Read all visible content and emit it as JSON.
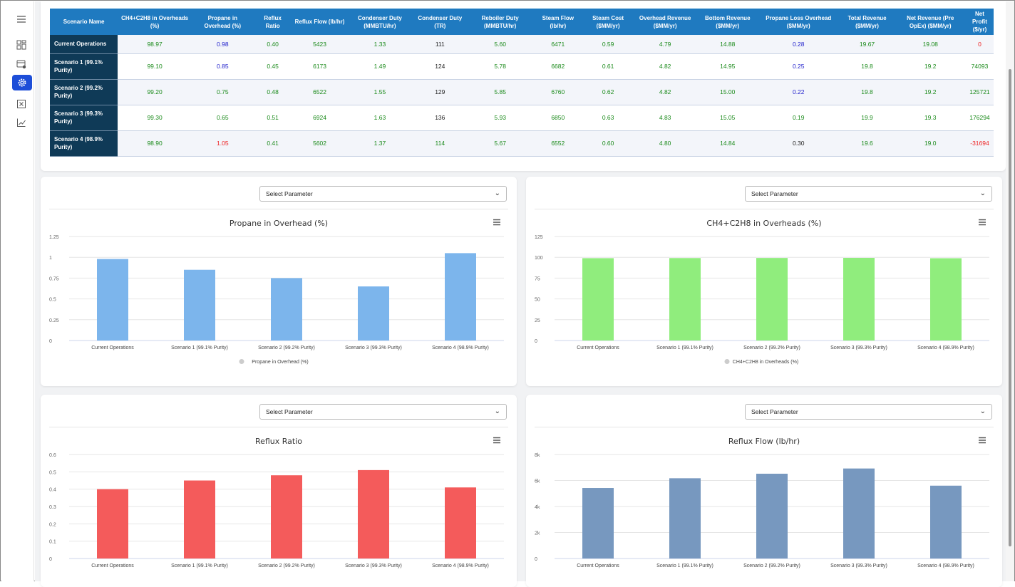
{
  "sidebar": {
    "icons": [
      "menu-icon",
      "dashboard-icon",
      "storage-settings-icon",
      "gear-icon",
      "close-box-icon",
      "trend-chart-icon"
    ],
    "active_index": 3
  },
  "table": {
    "headers": [
      "Scenario Name",
      "CH4+C2H8 in Overheads (%)",
      "Propane in Overhead (%)",
      "Reflux Ratio",
      "Reflux Flow (lb/hr)",
      "Condenser Duty (MMBTU/hr)",
      "Condenser Duty (TR)",
      "Reboiler Duty (MMBTU/hr)",
      "Steam Flow (lb/hr)",
      "Steam Cost ($MM/yr)",
      "Overhead Revenue ($MM/yr)",
      "Bottom Revenue ($MM/yr)",
      "Propane Loss Overhead ($MM/yr)",
      "Total Revenue ($MM/yr)",
      "Net Revenue (Pre OpEx) ($MM/yr)",
      "Net Profit ($/yr)"
    ],
    "rows": [
      {
        "name": "Current Operations",
        "cells": [
          "98.97",
          "0.98",
          "0.40",
          "5423",
          "1.33",
          "111",
          "5.60",
          "6471",
          "0.59",
          "4.79",
          "14.88",
          "0.28",
          "19.67",
          "19.08",
          "0"
        ],
        "colors": [
          "green",
          "blue",
          "green",
          "green",
          "green",
          "black",
          "green",
          "green",
          "green",
          "green",
          "green",
          "blue",
          "green",
          "green",
          "red"
        ]
      },
      {
        "name": "Scenario 1 (99.1% Purity)",
        "cells": [
          "99.10",
          "0.85",
          "0.45",
          "6173",
          "1.49",
          "124",
          "5.78",
          "6682",
          "0.61",
          "4.82",
          "14.95",
          "0.25",
          "19.8",
          "19.2",
          "74093"
        ],
        "colors": [
          "green",
          "blue",
          "green",
          "green",
          "green",
          "black",
          "green",
          "green",
          "green",
          "green",
          "green",
          "blue",
          "green",
          "green",
          "green"
        ]
      },
      {
        "name": "Scenario 2 (99.2% Purity)",
        "cells": [
          "99.20",
          "0.75",
          "0.48",
          "6522",
          "1.55",
          "129",
          "5.85",
          "6760",
          "0.62",
          "4.82",
          "15.00",
          "0.22",
          "19.8",
          "19.2",
          "125721"
        ],
        "colors": [
          "green",
          "green",
          "green",
          "green",
          "green",
          "black",
          "green",
          "green",
          "green",
          "green",
          "green",
          "blue",
          "green",
          "green",
          "green"
        ]
      },
      {
        "name": "Scenario 3 (99.3% Purity)",
        "cells": [
          "99.30",
          "0.65",
          "0.51",
          "6924",
          "1.63",
          "136",
          "5.93",
          "6850",
          "0.63",
          "4.83",
          "15.05",
          "0.19",
          "19.9",
          "19.3",
          "176294"
        ],
        "colors": [
          "green",
          "green",
          "green",
          "green",
          "green",
          "black",
          "green",
          "green",
          "green",
          "green",
          "green",
          "green",
          "green",
          "green",
          "green"
        ]
      },
      {
        "name": "Scenario 4 (98.9% Purity)",
        "cells": [
          "98.90",
          "1.05",
          "0.41",
          "5602",
          "1.37",
          "114",
          "5.67",
          "6552",
          "0.60",
          "4.80",
          "14.84",
          "0.30",
          "19.6",
          "19.0",
          "-31694"
        ],
        "colors": [
          "green",
          "red",
          "green",
          "green",
          "green",
          "green",
          "green",
          "green",
          "green",
          "green",
          "green",
          "black",
          "green",
          "green",
          "red"
        ]
      }
    ]
  },
  "colors": {
    "header_bg": "#1f7ac0",
    "rowhead_bg": "#0f3a57",
    "accent": "#1d4ed8"
  },
  "select_placeholder": "Select Parameter",
  "chart_data": [
    {
      "type": "bar",
      "title": "Propane in Overhead (%)",
      "categories": [
        "Current Operations",
        "Scenario 1 (99.1% Purity)",
        "Scenario 2 (99.2% Purity)",
        "Scenario 3 (99.3% Purity)",
        "Scenario 4 (98.9% Purity)"
      ],
      "series": [
        {
          "name": "Propane in Overhead (%)",
          "values": [
            0.98,
            0.85,
            0.75,
            0.65,
            1.05
          ]
        }
      ],
      "ylim": [
        0,
        1.25
      ],
      "yticks": [
        "0",
        "0.25",
        "0.5",
        "0.75",
        "1",
        "1.25"
      ],
      "color": "#7cb5ec",
      "legend": true
    },
    {
      "type": "bar",
      "title": "CH4+C2H8 in Overheads (%)",
      "categories": [
        "Current Operations",
        "Scenario 1 (99.1% Purity)",
        "Scenario 2 (99.2% Purity)",
        "Scenario 3 (99.3% Purity)",
        "Scenario 4 (98.9% Purity)"
      ],
      "series": [
        {
          "name": "CH4+C2H8 in Overheads (%)",
          "values": [
            98.97,
            99.1,
            99.2,
            99.3,
            98.9
          ]
        }
      ],
      "ylim": [
        0,
        125
      ],
      "yticks": [
        "0",
        "25",
        "50",
        "75",
        "100",
        "125"
      ],
      "color": "#90ed7d",
      "legend": true
    },
    {
      "type": "bar",
      "title": "Reflux Ratio",
      "categories": [
        "Current Operations",
        "Scenario 1 (99.1% Purity)",
        "Scenario 2 (99.2% Purity)",
        "Scenario 3 (99.3% Purity)",
        "Scenario 4 (98.9% Purity)"
      ],
      "series": [
        {
          "values": [
            0.4,
            0.45,
            0.48,
            0.51,
            0.41
          ]
        }
      ],
      "ylim": [
        0,
        0.6
      ],
      "yticks": [
        "0",
        "0.1",
        "0.2",
        "0.3",
        "0.4",
        "0.5",
        "0.6"
      ],
      "color": "#f45b5b",
      "legend": false
    },
    {
      "type": "bar",
      "title": "Reflux Flow (lb/hr)",
      "categories": [
        "Current Operations",
        "Scenario 1 (99.1% Purity)",
        "Scenario 2 (99.2% Purity)",
        "Scenario 3 (99.3% Purity)",
        "Scenario 4 (98.9% Purity)"
      ],
      "series": [
        {
          "values": [
            5423,
            6173,
            6522,
            6924,
            5602
          ]
        }
      ],
      "ylim": [
        0,
        8000
      ],
      "yticks": [
        "0",
        "2k",
        "4k",
        "6k",
        "8k"
      ],
      "color": "#7798bf",
      "legend": false
    }
  ]
}
